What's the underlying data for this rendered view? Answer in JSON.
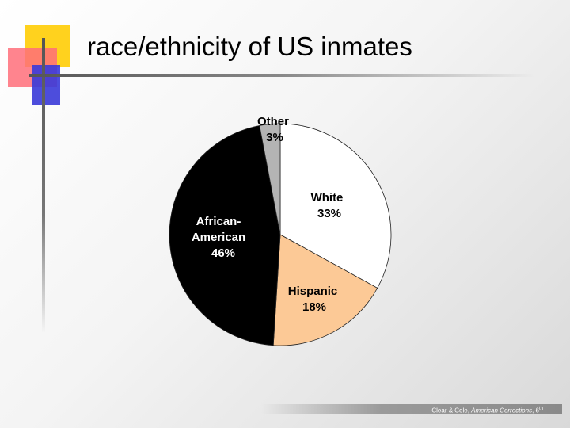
{
  "title": "race/ethnicity of US inmates",
  "footer": {
    "authors": "Clear & Cole, ",
    "book": "American Corrections",
    "edition": ", 6",
    "edition_suffix": "th"
  },
  "colors": {
    "white": "#ffffff",
    "hispanic": "#fcc996",
    "african_american": "#000000",
    "other": "#b4b4b4",
    "accent_yellow": "#ffd21e",
    "accent_pink": "#ff6f7a",
    "accent_blue": "#3a3ad8"
  },
  "chart_data": {
    "type": "pie",
    "title": "",
    "slices": [
      {
        "label": "White",
        "value": 33,
        "value_label": "33%"
      },
      {
        "label": "Hispanic",
        "value": 18,
        "value_label": "18%"
      },
      {
        "label": "African-American",
        "value": 46,
        "value_label": "46%"
      },
      {
        "label": "Other",
        "value": 3,
        "value_label": "3%"
      }
    ],
    "start_angle_deg": 0,
    "direction": "clockwise"
  }
}
